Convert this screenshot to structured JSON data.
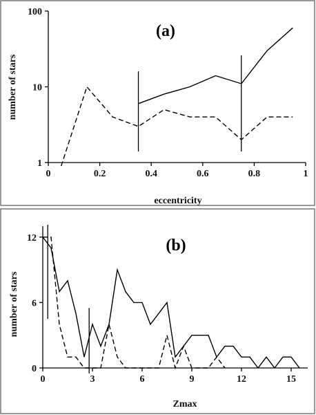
{
  "chart_data": [
    {
      "type": "line",
      "label": "(a)",
      "xlabel": "eccentricity",
      "ylabel": "number of stars",
      "yscale": "log",
      "xlim": [
        0,
        1
      ],
      "ylim": [
        1,
        100
      ],
      "xticks": [
        "0",
        "0.2",
        "0.4",
        "0.6",
        "0.8",
        "1"
      ],
      "yticks": [
        "1",
        "10",
        "100"
      ],
      "grid": false,
      "series": [
        {
          "style": "solid",
          "x": [
            0.35,
            0.45,
            0.55,
            0.65,
            0.75,
            0.85,
            0.95
          ],
          "y": [
            6,
            8,
            10,
            14,
            11,
            30,
            60
          ]
        },
        {
          "style": "dashed",
          "x": [
            0.05,
            0.15,
            0.25,
            0.35,
            0.45,
            0.55,
            0.65,
            0.75,
            0.85,
            0.95
          ],
          "y": [
            0.9,
            10,
            4,
            3,
            5,
            4,
            4,
            2,
            4,
            4
          ]
        }
      ],
      "error_bars": [
        {
          "x": 0.35,
          "low": 1.4,
          "high": 16
        },
        {
          "x": 0.75,
          "low": 1.4,
          "high": 26
        }
      ]
    },
    {
      "type": "line",
      "label": "(b)",
      "xlabel": "Zmax",
      "ylabel": "number of stars",
      "xlim": [
        0,
        16
      ],
      "ylim": [
        0,
        13
      ],
      "xticks": [
        "0",
        "3",
        "6",
        "9",
        "12",
        "15"
      ],
      "yticks": [
        "0",
        "6",
        "12"
      ],
      "grid": false,
      "series": [
        {
          "style": "solid",
          "x": [
            0,
            0.5,
            1,
            1.5,
            2,
            2.5,
            3,
            3.5,
            4,
            4.5,
            5,
            5.5,
            6,
            6.5,
            7,
            7.5,
            8,
            8.5,
            9,
            9.5,
            10,
            10.5,
            11,
            11.5,
            12,
            12.5,
            13,
            13.5,
            14,
            14.5,
            15,
            15.5
          ],
          "y": [
            12,
            11,
            7,
            8,
            5,
            1,
            4,
            2,
            4,
            9,
            7,
            6,
            6,
            4,
            5,
            6,
            1,
            2,
            3,
            3,
            3,
            1,
            2,
            2,
            1,
            1,
            0,
            1,
            0,
            1,
            1,
            0
          ]
        },
        {
          "style": "dashed",
          "x": [
            0,
            0.5,
            1,
            1.5,
            2,
            2.5,
            3,
            3.5,
            4,
            4.5,
            5,
            5.5,
            6,
            6.5,
            7,
            7.5,
            8,
            8.5,
            9,
            9.5,
            10,
            10.5,
            11
          ],
          "y": [
            12,
            12,
            4,
            1,
            1,
            0,
            0,
            0,
            4,
            1,
            0,
            0,
            0,
            0,
            0,
            3,
            0,
            2,
            0,
            0,
            0,
            1,
            0
          ]
        }
      ],
      "error_bars": [
        {
          "x": 0.3,
          "low": 4.5,
          "high": 14
        },
        {
          "x": 2.8,
          "low": -0.5,
          "high": 5.5
        }
      ]
    }
  ]
}
